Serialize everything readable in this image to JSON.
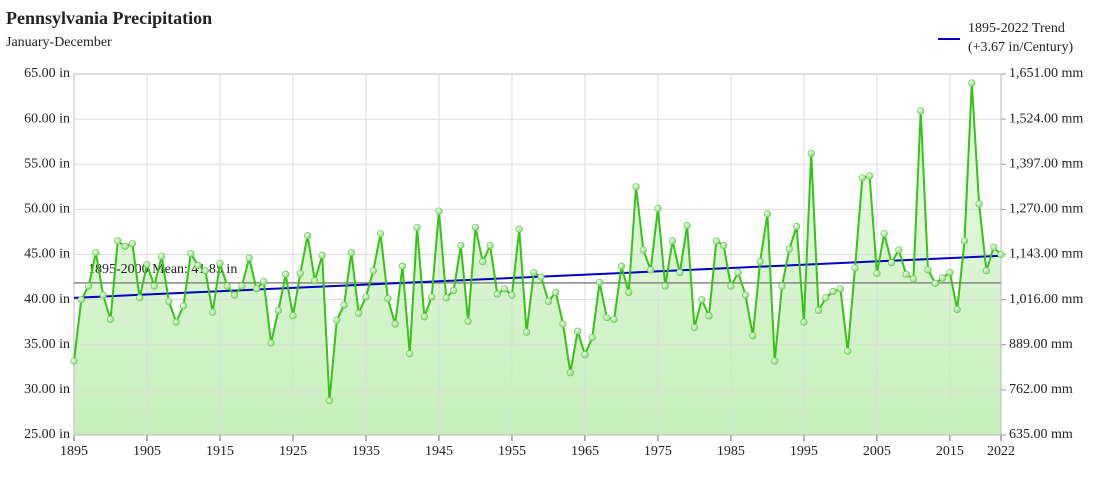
{
  "chart_data": {
    "type": "line",
    "title": "Pennsylvania Precipitation",
    "subtitle": "January-December",
    "x": [
      1895,
      1896,
      1897,
      1898,
      1899,
      1900,
      1901,
      1902,
      1903,
      1904,
      1905,
      1906,
      1907,
      1908,
      1909,
      1910,
      1911,
      1912,
      1913,
      1914,
      1915,
      1916,
      1917,
      1918,
      1919,
      1920,
      1921,
      1922,
      1923,
      1924,
      1925,
      1926,
      1927,
      1928,
      1929,
      1930,
      1931,
      1932,
      1933,
      1934,
      1935,
      1936,
      1937,
      1938,
      1939,
      1940,
      1941,
      1942,
      1943,
      1944,
      1945,
      1946,
      1947,
      1948,
      1949,
      1950,
      1951,
      1952,
      1953,
      1954,
      1955,
      1956,
      1957,
      1958,
      1959,
      1960,
      1961,
      1962,
      1963,
      1964,
      1965,
      1966,
      1967,
      1968,
      1969,
      1970,
      1971,
      1972,
      1973,
      1974,
      1975,
      1976,
      1977,
      1978,
      1979,
      1980,
      1981,
      1982,
      1983,
      1984,
      1985,
      1986,
      1987,
      1988,
      1989,
      1990,
      1991,
      1992,
      1993,
      1994,
      1995,
      1996,
      1997,
      1998,
      1999,
      2000,
      2001,
      2002,
      2003,
      2004,
      2005,
      2006,
      2007,
      2008,
      2009,
      2010,
      2011,
      2012,
      2013,
      2014,
      2015,
      2016,
      2017,
      2018,
      2019,
      2020,
      2021,
      2022
    ],
    "series": [
      {
        "name": "Precipitation",
        "color": "#33c414",
        "values": [
          33.2,
          40.0,
          41.5,
          45.2,
          40.5,
          37.8,
          46.5,
          45.9,
          46.2,
          40.2,
          43.9,
          41.5,
          44.8,
          39.8,
          37.5,
          39.3,
          45.1,
          43.8,
          43.2,
          38.6,
          44.0,
          41.5,
          40.5,
          41.5,
          44.6,
          41.2,
          42.0,
          35.2,
          38.8,
          42.8,
          38.2,
          42.9,
          47.1,
          42.1,
          44.9,
          28.8,
          37.7,
          39.4,
          45.2,
          38.5,
          40.3,
          43.2,
          47.3,
          40.1,
          37.3,
          43.7,
          34.0,
          48.0,
          38.1,
          40.3,
          49.8,
          40.2,
          41.0,
          46.0,
          37.6,
          48.0,
          44.2,
          46.0,
          40.6,
          41.2,
          40.5,
          47.8,
          36.4,
          43.0,
          42.5,
          39.8,
          40.8,
          37.3,
          31.9,
          36.5,
          33.9,
          35.8,
          41.9,
          38.0,
          37.8,
          43.7,
          40.8,
          52.5,
          45.5,
          43.3,
          50.1,
          41.5,
          46.5,
          43.0,
          48.2,
          36.9,
          40.0,
          38.2,
          46.5,
          46.0,
          41.5,
          43.0,
          40.5,
          36.0,
          44.2,
          49.5,
          33.2,
          41.5,
          45.6,
          48.1,
          37.5,
          56.2,
          38.8,
          40.2,
          40.9,
          41.2,
          34.3,
          43.5,
          53.5,
          53.7,
          42.9,
          47.3,
          44.1,
          45.5,
          42.8,
          42.3,
          60.9,
          43.3,
          41.8,
          42.4,
          43.0,
          38.9,
          46.5,
          64.0,
          50.6,
          43.2,
          45.8,
          45.0
        ]
      }
    ],
    "trend": {
      "name": "1895-2022 Trend",
      "note": "(+3.67 in/Century)",
      "color": "#0000cc",
      "x": [
        1895,
        2022
      ],
      "values": [
        40.2,
        44.86
      ]
    },
    "mean": {
      "label": "1895-2000 Mean: 41.85 in",
      "value": 41.85,
      "color": "#888888"
    },
    "xlim": [
      1895,
      2022
    ],
    "xticks": [
      1895,
      1905,
      1915,
      1925,
      1935,
      1945,
      1955,
      1965,
      1975,
      1985,
      1995,
      2005,
      2015,
      2022
    ],
    "ylim": [
      25,
      65
    ],
    "yticks": [
      {
        "value": 25,
        "label": "25.00 in"
      },
      {
        "value": 30,
        "label": "30.00 in"
      },
      {
        "value": 35,
        "label": "35.00 in"
      },
      {
        "value": 40,
        "label": "40.00 in"
      },
      {
        "value": 45,
        "label": "45.00 in"
      },
      {
        "value": 50,
        "label": "50.00 in"
      },
      {
        "value": 55,
        "label": "55.00 in"
      },
      {
        "value": 60,
        "label": "60.00 in"
      },
      {
        "value": 65,
        "label": "65.00 in"
      }
    ],
    "y2lim": [
      635,
      1651
    ],
    "y2ticks": [
      {
        "value": 635,
        "label": "635.00 mm"
      },
      {
        "value": 762,
        "label": "762.00 mm"
      },
      {
        "value": 889,
        "label": "889.00 mm"
      },
      {
        "value": 1016,
        "label": "1,016.00 mm"
      },
      {
        "value": 1143,
        "label": "1,143.00 mm"
      },
      {
        "value": 1270,
        "label": "1,270.00 mm"
      },
      {
        "value": 1397,
        "label": "1,397.00 mm"
      },
      {
        "value": 1524,
        "label": "1,524.00 mm"
      },
      {
        "value": 1651,
        "label": "1,651.00 mm"
      }
    ],
    "grid": true
  }
}
